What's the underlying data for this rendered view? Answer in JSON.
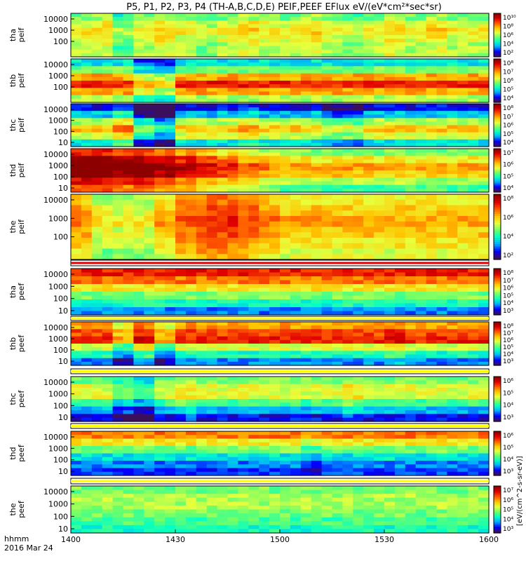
{
  "chart_data": {
    "type": "heatmap",
    "title": "P5, P1, P2, P3, P4 (TH-A,B,C,D,E) PEIF,PEEF EFlux eV/(eV*cm²*sec*sr)",
    "x_axis": {
      "range": [
        1400,
        1600
      ],
      "ticks": [
        "1400",
        "1430",
        "1500",
        "1530",
        "1600"
      ],
      "label_line1": "hhmm",
      "label_line2": "2016 Mar 24"
    },
    "colorbar_label": "[eV/(cm^2-s-sr-eV)]",
    "colormap": [
      "#3b0f5e",
      "#0000ff",
      "#00aaff",
      "#00ffc8",
      "#6bff6b",
      "#e8ff3c",
      "#ffc400",
      "#ff5a00",
      "#e00000",
      "#8c0000"
    ],
    "panels": [
      {
        "name": "tha",
        "species": "peif",
        "label": "tha\npeif",
        "yticks": [
          "10000",
          "1000",
          "100"
        ],
        "colorbar_ticks": [
          "10¹⁰",
          "10⁸",
          "10⁶",
          "10⁴",
          "10²"
        ],
        "level_profile": [
          0.45,
          0.55,
          0.6,
          0.55,
          0.5,
          0.5
        ],
        "time_mod": [
          0,
          0.05,
          -0.1,
          0,
          0.05,
          0,
          -0.05,
          0,
          0.05,
          0,
          0,
          0.05,
          0,
          -0.05,
          0,
          0.05,
          0,
          0.05,
          0,
          0
        ]
      },
      {
        "name": "thb",
        "species": "peif",
        "label": "thb\npeif",
        "yticks": [
          "10000",
          "1000",
          "100"
        ],
        "colorbar_ticks": [
          "10⁸",
          "10⁷",
          "10⁶",
          "10⁵",
          "10⁴"
        ],
        "level_profile": [
          0.3,
          0.45,
          0.7,
          0.85,
          0.7,
          0.5
        ],
        "time_mod": [
          0,
          0,
          0,
          -0.15,
          -0.2,
          0,
          0,
          0,
          0,
          0,
          0,
          0,
          0,
          0,
          0,
          0,
          0,
          0,
          0,
          0
        ]
      },
      {
        "name": "thc",
        "species": "peif",
        "label": "thc\npeif",
        "yticks": [
          "10000",
          "1000",
          "100",
          "10"
        ],
        "colorbar_ticks": [
          "10⁸",
          "10⁷",
          "10⁶",
          "10⁵",
          "10⁴"
        ],
        "level_profile": [
          0.1,
          0.25,
          0.5,
          0.65,
          0.55,
          0.3
        ],
        "time_mod": [
          0,
          0,
          0.1,
          -0.2,
          -0.3,
          0,
          0,
          0,
          0.05,
          0,
          0,
          0,
          -0.1,
          -0.1,
          0,
          0,
          0,
          0,
          0,
          0
        ]
      },
      {
        "name": "thd",
        "species": "peif",
        "label": "thd\npeif",
        "yticks": [
          "10000",
          "1000",
          "100",
          "10"
        ],
        "colorbar_ticks": [
          "10⁷",
          "10⁶",
          "10⁵",
          "10⁴"
        ],
        "level_profile": [
          0.55,
          0.7,
          0.8,
          0.75,
          0.6,
          0.5
        ],
        "time_mod": [
          0.3,
          0.3,
          0.25,
          0.25,
          0.2,
          0.15,
          0.1,
          0.05,
          0,
          -0.05,
          -0.1,
          -0.1,
          -0.1,
          -0.1,
          -0.1,
          -0.1,
          -0.1,
          -0.1,
          -0.1,
          -0.1
        ]
      },
      {
        "name": "the",
        "species": "peif",
        "label": "the\npeif",
        "yticks": [
          "10000",
          "1000",
          "100"
        ],
        "colorbar_ticks": [
          "10⁸",
          "10⁶",
          "10⁴",
          "10²"
        ],
        "level_profile": [
          0.6,
          0.65,
          0.7,
          0.65,
          0.6,
          0.55
        ],
        "time_mod": [
          0.05,
          -0.1,
          -0.1,
          -0.1,
          0,
          0.1,
          0.15,
          0.15,
          0.1,
          0.05,
          0,
          0,
          0,
          0,
          0,
          0,
          0,
          0,
          0,
          0
        ]
      },
      {
        "name": "tha",
        "species": "peef",
        "label": "tha\npeef",
        "yticks": [
          "10000",
          "1000",
          "100",
          "10"
        ],
        "colorbar_ticks": [
          "10⁸",
          "10⁷",
          "10⁶",
          "10⁵",
          "10⁴",
          "10³"
        ],
        "level_profile": [
          0.85,
          0.75,
          0.6,
          0.45,
          0.35,
          0.2
        ],
        "time_mod": [
          0,
          0,
          0,
          0,
          0,
          0,
          0,
          0,
          0,
          0,
          0,
          0,
          0,
          0,
          0,
          0,
          0,
          0,
          0,
          0
        ]
      },
      {
        "name": "thb",
        "species": "peef",
        "label": "thb\npeef",
        "yticks": [
          "10000",
          "1000",
          "100",
          "10"
        ],
        "colorbar_ticks": [
          "10⁸",
          "10⁷",
          "10⁶",
          "10⁵",
          "10⁴",
          "10³"
        ],
        "level_profile": [
          0.7,
          0.8,
          0.85,
          0.55,
          0.35,
          0.2
        ],
        "time_mod": [
          0,
          0,
          -0.15,
          0.05,
          -0.15,
          0,
          0,
          0,
          0,
          0,
          0,
          0,
          0,
          0,
          0,
          0.05,
          0,
          0,
          0,
          0
        ]
      },
      {
        "name": "thc",
        "species": "peef",
        "label": "thc\npeef",
        "yticks": [
          "10000",
          "1000",
          "100",
          "10"
        ],
        "colorbar_ticks": [
          "10⁶",
          "10⁵",
          "10⁴",
          "10³"
        ],
        "level_profile": [
          0.45,
          0.55,
          0.55,
          0.4,
          0.25,
          0.1
        ],
        "time_mod": [
          0,
          0,
          -0.1,
          -0.15,
          0,
          0.05,
          0,
          0,
          0,
          0,
          0,
          0,
          0,
          0.05,
          0,
          0,
          0,
          0,
          0,
          0
        ]
      },
      {
        "name": "thd",
        "species": "peef",
        "label": "thd\npeef",
        "yticks": [
          "10000",
          "1000",
          "100",
          "10"
        ],
        "colorbar_ticks": [
          "10⁶",
          "10⁵",
          "10⁴",
          "10³"
        ],
        "level_profile": [
          0.75,
          0.6,
          0.45,
          0.3,
          0.2,
          0.15
        ],
        "time_mod": [
          0,
          0,
          0,
          0,
          0,
          0,
          0,
          0,
          0,
          0,
          0,
          -0.05,
          0,
          0,
          0,
          0,
          0,
          0,
          0,
          0
        ]
      },
      {
        "name": "the",
        "species": "peef",
        "label": "the\npeef",
        "yticks": [
          "10000",
          "1000",
          "100",
          "10"
        ],
        "colorbar_ticks": [
          "10⁷",
          "10⁶",
          "10⁵",
          "10⁴",
          "10³"
        ],
        "level_profile": [
          0.45,
          0.5,
          0.5,
          0.45,
          0.4,
          0.35
        ],
        "time_mod": [
          0,
          0,
          0,
          0,
          0,
          0,
          0,
          0,
          0,
          0,
          0,
          0,
          0,
          0,
          0,
          0,
          0,
          0,
          0,
          0
        ]
      }
    ]
  }
}
